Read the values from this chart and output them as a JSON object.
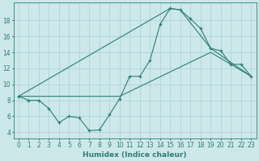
{
  "xlabel": "Humidex (Indice chaleur)",
  "xlim": [
    -0.5,
    23.5
  ],
  "ylim": [
    3.2,
    20.2
  ],
  "yticks": [
    4,
    6,
    8,
    10,
    12,
    14,
    16,
    18
  ],
  "xticks": [
    0,
    1,
    2,
    3,
    4,
    5,
    6,
    7,
    8,
    9,
    10,
    11,
    12,
    13,
    14,
    15,
    16,
    17,
    18,
    19,
    20,
    21,
    22,
    23
  ],
  "bg_color": "#cce8ea",
  "line_color": "#2e7d72",
  "grid_color": "#b0d4d8",
  "line1_x": [
    0,
    1,
    2,
    3,
    4,
    5,
    6,
    7,
    8,
    9,
    10,
    11,
    12,
    13,
    14,
    15,
    16,
    17,
    18,
    19,
    20,
    21,
    22,
    23
  ],
  "line1_y": [
    8.5,
    8.0,
    8.0,
    7.0,
    5.2,
    6.0,
    5.8,
    4.2,
    4.3,
    6.2,
    8.2,
    11.0,
    11.0,
    13.0,
    17.5,
    19.5,
    19.3,
    18.2,
    17.0,
    14.5,
    14.2,
    12.5,
    12.5,
    11.0
  ],
  "line2_x": [
    0,
    15,
    16,
    19,
    23
  ],
  "line2_y": [
    8.5,
    19.5,
    19.3,
    14.5,
    11.0
  ],
  "line3_x": [
    0,
    10,
    19,
    23
  ],
  "line3_y": [
    8.5,
    8.5,
    14.0,
    11.0
  ]
}
